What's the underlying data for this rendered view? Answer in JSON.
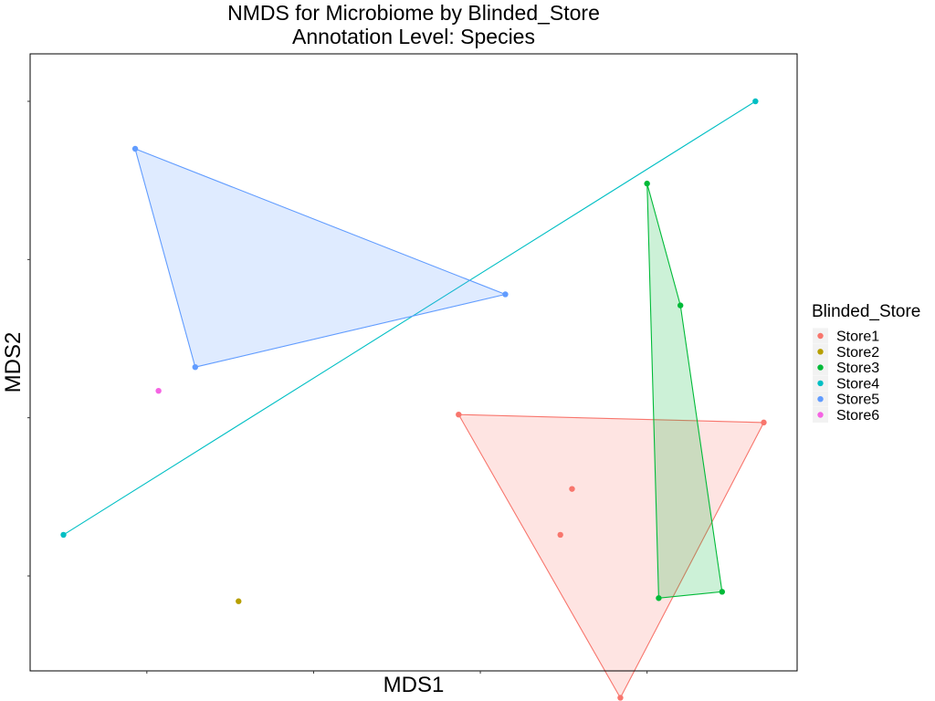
{
  "chart_data": {
    "type": "scatter",
    "title": "NMDS for Microbiome by Blinded_Store",
    "subtitle": "Annotation Level: Species",
    "xlabel": "MDS1",
    "ylabel": "MDS2",
    "xlim": [
      -0.2,
      4.4
    ],
    "ylim": [
      -3.6,
      0.3
    ],
    "x_ticks": [
      0.5,
      1.5,
      2.5,
      3.5
    ],
    "y_ticks": [
      0,
      -1,
      -2,
      -3
    ],
    "tick_labels_visible": false,
    "grid": false,
    "hulls": true,
    "legend": {
      "title": "Blinded_Store",
      "position": "right"
    },
    "series": [
      {
        "name": "Store1",
        "color": "#F8766D",
        "points": [
          [
            2.37,
            -1.98
          ],
          [
            4.2,
            -2.03
          ],
          [
            3.05,
            -2.45
          ],
          [
            2.98,
            -2.74
          ],
          [
            3.34,
            -3.77
          ]
        ],
        "hull": [
          [
            2.37,
            -1.98
          ],
          [
            4.2,
            -2.03
          ],
          [
            3.34,
            -3.77
          ]
        ]
      },
      {
        "name": "Store2",
        "color": "#B79F00",
        "points": [
          [
            1.05,
            -3.16
          ]
        ],
        "hull": []
      },
      {
        "name": "Store3",
        "color": "#00BA38",
        "points": [
          [
            3.5,
            -0.52
          ],
          [
            3.7,
            -1.29
          ],
          [
            3.57,
            -3.14
          ],
          [
            3.95,
            -3.1
          ]
        ],
        "hull": [
          [
            3.5,
            -0.52
          ],
          [
            3.7,
            -1.29
          ],
          [
            3.95,
            -3.1
          ],
          [
            3.57,
            -3.14
          ]
        ]
      },
      {
        "name": "Store4",
        "color": "#00BFC4",
        "points": [
          [
            0.0,
            -2.74
          ],
          [
            4.15,
            -0.0
          ]
        ],
        "hull": [
          [
            0.0,
            -2.74
          ],
          [
            4.15,
            -0.0
          ]
        ]
      },
      {
        "name": "Store5",
        "color": "#619CFF",
        "points": [
          [
            0.43,
            -0.3
          ],
          [
            2.65,
            -1.22
          ],
          [
            0.79,
            -1.68
          ]
        ],
        "hull": [
          [
            0.43,
            -0.3
          ],
          [
            2.65,
            -1.22
          ],
          [
            0.79,
            -1.68
          ]
        ]
      },
      {
        "name": "Store6",
        "color": "#F564E3",
        "points": [
          [
            0.57,
            -1.83
          ]
        ],
        "hull": []
      }
    ]
  }
}
